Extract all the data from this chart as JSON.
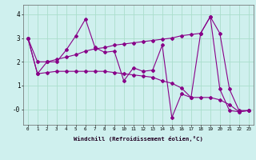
{
  "xlabel": "Windchill (Refroidissement éolien,°C)",
  "bg_color": "#cff0ee",
  "grid_color": "#aaddcc",
  "line_color": "#880088",
  "x": [
    0,
    1,
    2,
    3,
    4,
    5,
    6,
    7,
    8,
    9,
    10,
    11,
    12,
    13,
    14,
    15,
    16,
    17,
    18,
    19,
    20,
    21,
    22,
    23
  ],
  "y_main": [
    3.0,
    1.5,
    2.0,
    2.0,
    2.5,
    3.1,
    3.8,
    2.6,
    2.4,
    2.45,
    1.2,
    1.75,
    1.6,
    1.65,
    2.7,
    -0.35,
    0.65,
    0.5,
    3.2,
    3.9,
    0.85,
    -0.05,
    -0.1,
    -0.05
  ],
  "y_top": [
    3.0,
    2.0,
    2.0,
    2.1,
    2.2,
    2.3,
    2.45,
    2.55,
    2.6,
    2.7,
    2.75,
    2.8,
    2.85,
    2.9,
    2.95,
    3.0,
    3.1,
    3.15,
    3.2,
    3.9,
    3.2,
    0.85,
    -0.05,
    -0.05
  ],
  "y_bot": [
    3.0,
    1.5,
    1.55,
    1.6,
    1.6,
    1.6,
    1.6,
    1.6,
    1.6,
    1.55,
    1.5,
    1.45,
    1.4,
    1.35,
    1.2,
    1.1,
    0.9,
    0.5,
    0.5,
    0.5,
    0.4,
    0.2,
    -0.1,
    -0.05
  ],
  "ylim": [
    -0.65,
    4.4
  ],
  "xlim": [
    -0.5,
    23.5
  ],
  "yticks": [
    0,
    1,
    2,
    3,
    4
  ],
  "ytick_labels": [
    "-0",
    "1",
    "2",
    "3",
    "4"
  ]
}
